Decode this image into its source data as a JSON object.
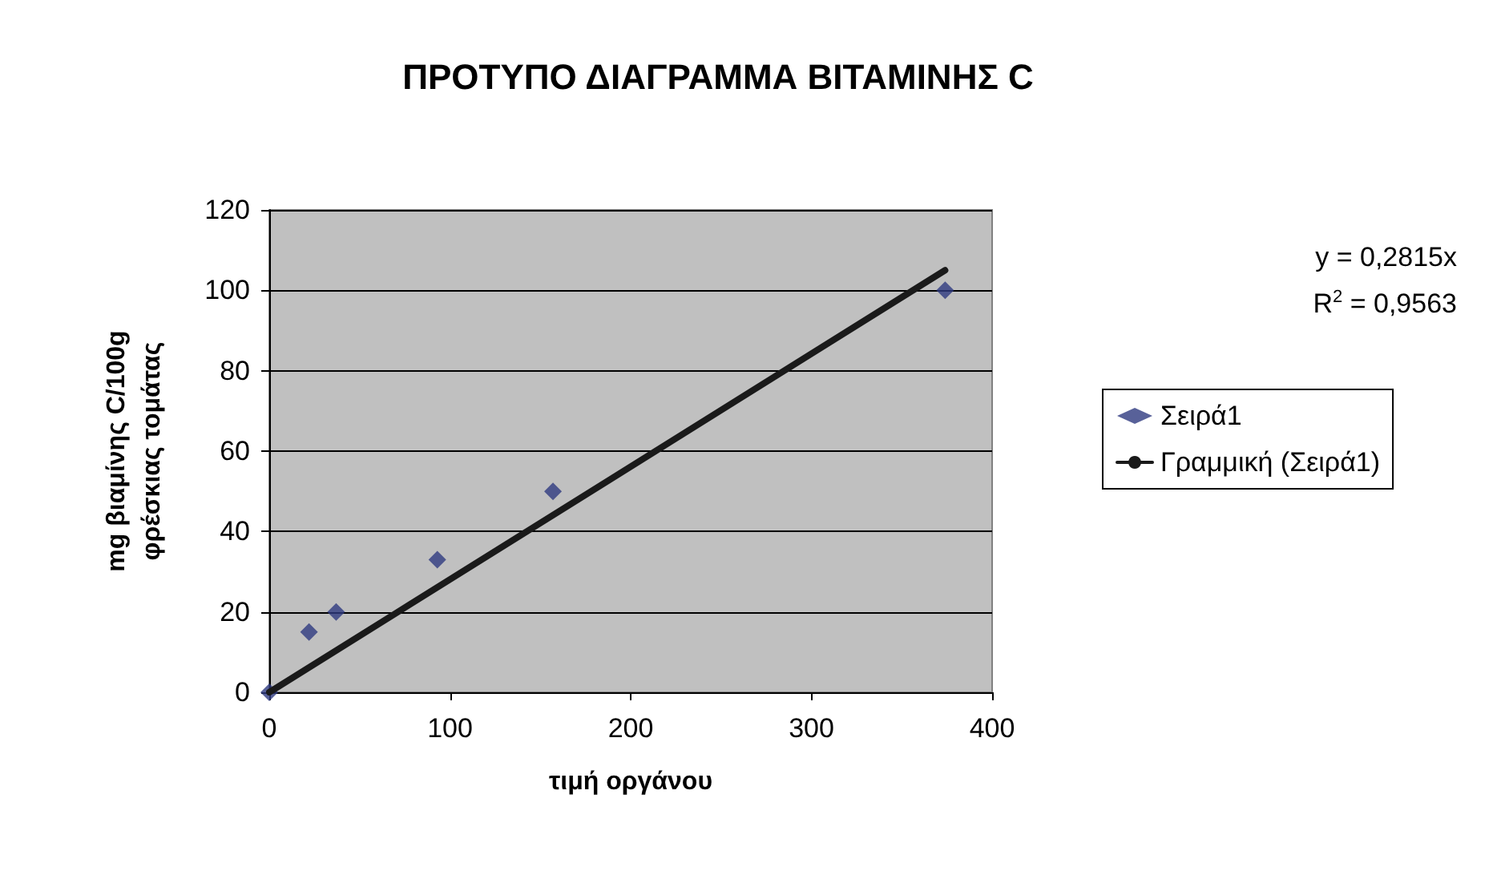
{
  "chart_data": {
    "type": "scatter",
    "title": "ΠΡΟΤΥΠΟ ΔΙΑΓΡΑΜΜΑ ΒΙΤΑΜΙΝΗΣ C",
    "xlabel": "τιμή οργάνου",
    "ylabel": "mg βιαμίνης C/100g\nφρέσκιας τομάτας",
    "x": [
      0,
      22,
      37,
      93,
      157,
      374
    ],
    "series": [
      {
        "name": "Σειρά1",
        "color": "#2e3a80",
        "values": [
          0,
          15,
          20,
          33,
          50,
          100
        ],
        "marker": "diamond"
      },
      {
        "name": "Γραμμική (Σειρά1)",
        "type": "line",
        "color": "#1a1a1a",
        "x": [
          0,
          374
        ],
        "values": [
          0,
          105
        ],
        "marker": "none",
        "line_style": "solid"
      }
    ],
    "annotations": [
      "y = 0,2815x",
      "R$^{2}$ = 0,9563"
    ],
    "xlim": [
      0,
      400
    ],
    "xticks": [
      0,
      100,
      200,
      300,
      400
    ],
    "ylim": [
      0,
      120
    ],
    "yticks": [
      0,
      20,
      40,
      60,
      80,
      100,
      120
    ],
    "grid": "y",
    "legend": "right"
  }
}
